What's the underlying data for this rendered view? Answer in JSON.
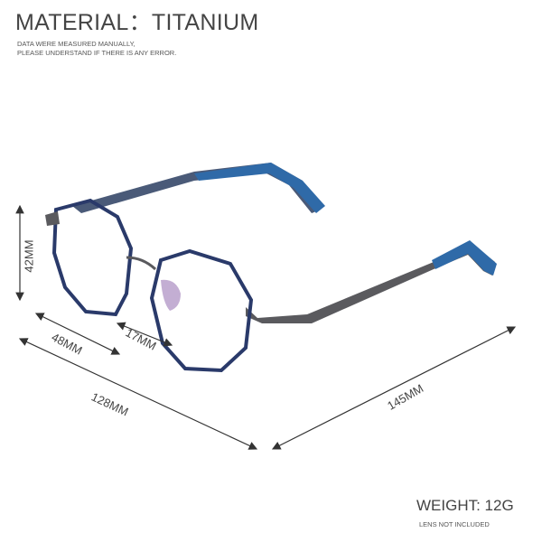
{
  "header": {
    "material_label": "MATERIAL：TITANIUM",
    "note_line1": "DATA WERE MEASURED MANUALLY,",
    "note_line2": "PLEASE UNDERSTAND IF THERE IS ANY ERROR."
  },
  "dimensions": {
    "lens_height": "42MM",
    "lens_width": "48MM",
    "bridge": "17MM",
    "frame_width": "128MM",
    "temple_length": "145MM"
  },
  "footer": {
    "weight": "WEIGHT: 12G",
    "lens_note": "LENS NOT INCLUDED"
  },
  "colors": {
    "frame": "#2a3a6a",
    "temple_tip": "#2f6aa8",
    "metal": "#5a5a5e",
    "dimension_lines": "#333333"
  }
}
